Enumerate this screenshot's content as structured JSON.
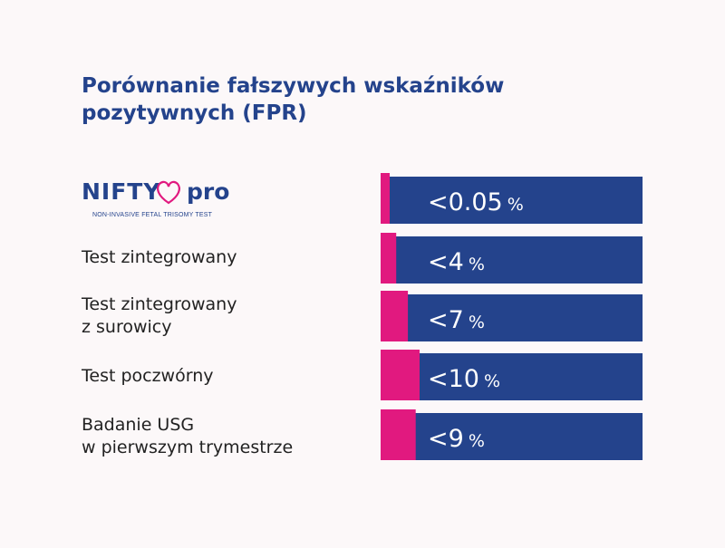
{
  "title": [
    "Porównanie fałszywych wskaźników",
    "pozytywnych (FPR)"
  ],
  "logo": {
    "word": "NIFTY",
    "suffix": "pro",
    "tagline": "NON-INVASIVE FETAL TRISOMY TEST"
  },
  "colors": {
    "title": "#24438c",
    "bar": "#24438c",
    "accent": "#e1197f",
    "background": "#fcf8f9"
  },
  "chart_data": {
    "type": "bar",
    "orientation": "horizontal",
    "categories": [
      "NIFTY pro",
      "Test zintegrowany",
      "Test zintegrowany z surowicy",
      "Test poczwórny",
      "Badanie USG w pierwszym trymestrze"
    ],
    "category_lines": [
      [],
      [
        "Test zintegrowany"
      ],
      [
        "Test zintegrowany",
        "z surowicy"
      ],
      [
        "Test poczwórny"
      ],
      [
        "Badanie USG",
        "w pierwszym trymestrze"
      ]
    ],
    "values": [
      0.05,
      4,
      7,
      10,
      9
    ],
    "value_labels": [
      "<0.05",
      "<4",
      "<7",
      "<10",
      "<9"
    ],
    "unit": "%",
    "xlim": [
      0,
      100
    ]
  }
}
